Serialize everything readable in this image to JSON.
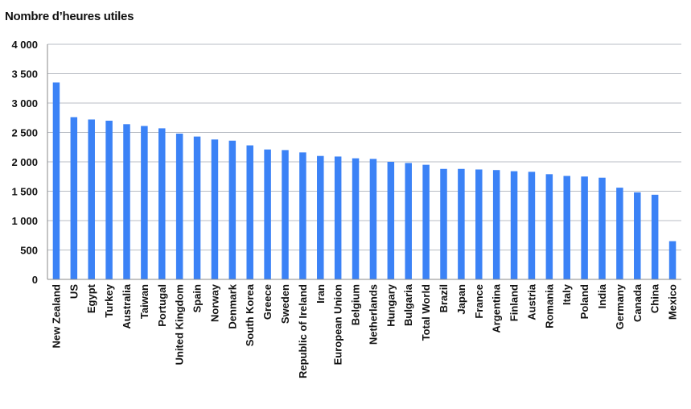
{
  "chart_data": {
    "type": "bar",
    "ylabel": "Nombre d’heures utiles",
    "xlabel": "",
    "ylim": [
      0,
      4000
    ],
    "yticks": [
      "0",
      "500",
      "1 000",
      "1 500",
      "2 000",
      "2 500",
      "3 000",
      "3 500",
      "4 000"
    ],
    "grid": true,
    "bar_color": "#3b82f6",
    "categories": [
      "New Zealand",
      "US",
      "Egypt",
      "Turkey",
      "Australia",
      "Taiwan",
      "Portugal",
      "United Kingdom",
      "Spain",
      "Norway",
      "Denmark",
      "South Korea",
      "Greece",
      "Sweden",
      "Republic of Ireland",
      "Iran",
      "European Union",
      "Belgium",
      "Netherlands",
      "Hungary",
      "Bulgaria",
      "Total World",
      "Brazil",
      "Japan",
      "France",
      "Argentina",
      "Finland",
      "Austria",
      "Romania",
      "Italy",
      "Poland",
      "India",
      "Germany",
      "Canada",
      "China",
      "Mexico"
    ],
    "values": [
      3350,
      2760,
      2720,
      2700,
      2640,
      2610,
      2570,
      2480,
      2430,
      2380,
      2360,
      2280,
      2210,
      2200,
      2160,
      2100,
      2090,
      2060,
      2050,
      2000,
      1980,
      1950,
      1880,
      1880,
      1870,
      1860,
      1840,
      1830,
      1790,
      1760,
      1750,
      1730,
      1560,
      1480,
      1440,
      650
    ]
  }
}
